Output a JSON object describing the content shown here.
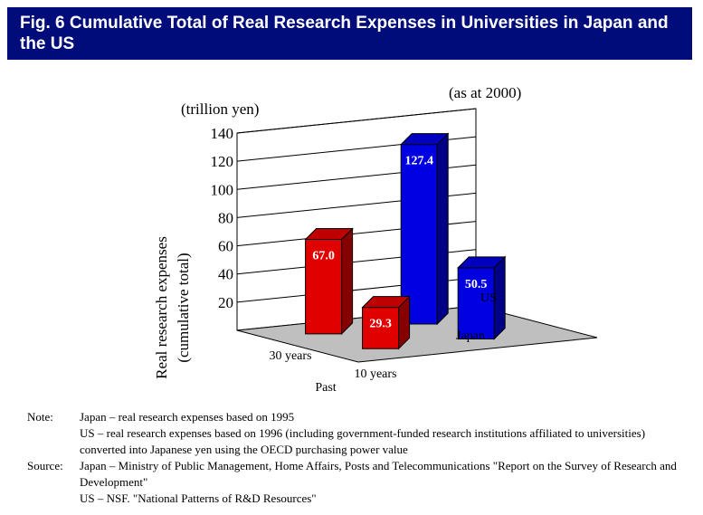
{
  "title": "Fig. 6  Cumulative Total of Real Research Expenses in Universities in Japan and the US",
  "chart_data": {
    "type": "bar",
    "unit_label": "(trillion yen)",
    "as_at": "(as at 2000)",
    "ylabel_line1": "Real research expenses",
    "ylabel_line2": "(cumulative total)",
    "xlabel": "Past",
    "categories": [
      "30 years",
      "10 years"
    ],
    "series": [
      {
        "name": "Japan",
        "values": [
          67.0,
          29.3
        ],
        "labels": [
          "67.0",
          "29.3"
        ],
        "color": "#e00000"
      },
      {
        "name": "US",
        "values": [
          127.4,
          50.5
        ],
        "labels": [
          "127.4",
          "50.5"
        ],
        "color": "#0000e0"
      }
    ],
    "yticks": [
      20,
      40,
      60,
      80,
      100,
      120,
      140
    ],
    "ylim": [
      0,
      140
    ],
    "grid": true
  },
  "notes": {
    "note_label": "Note:",
    "note_lines": [
      "Japan – real research expenses based on 1995",
      "US – real research expenses based on 1996 (including government-funded research institutions affiliated to universities) converted into Japanese yen using the OECD purchasing power value"
    ],
    "source_label": "Source:",
    "source_lines": [
      "Japan – Ministry of Public Management, Home Affairs, Posts and Telecommunications \"Report on the Survey of Research and Development\"",
      "US – NSF. \"National Patterns of R&D Resources\""
    ]
  }
}
